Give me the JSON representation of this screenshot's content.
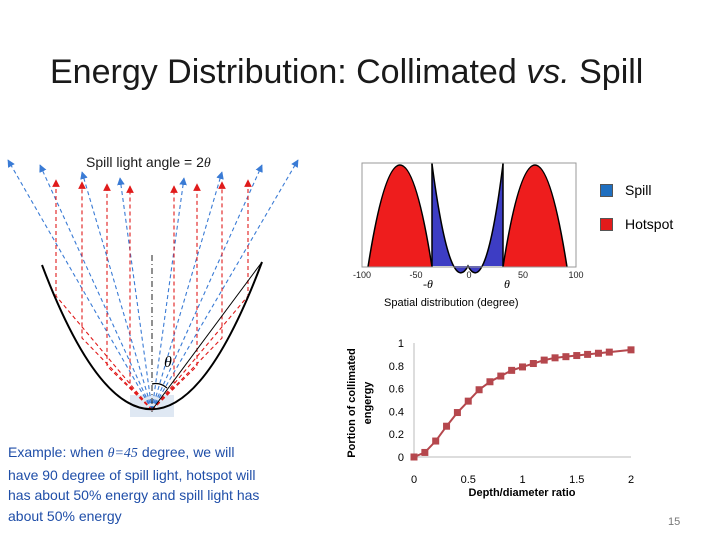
{
  "slide": {
    "title_main": "Energy Distribution: Collimated ",
    "title_vs": "vs.",
    "title_tail": " Spill",
    "page_number": "15"
  },
  "diagram": {
    "spill_label_prefix": "Spill light angle = 2",
    "theta_symbol": "θ",
    "spill_color": "#3a7bd5",
    "hotspot_color": "#e01b1b"
  },
  "spatial": {
    "ticks": [
      "-100",
      "-50",
      "0",
      "50",
      "100"
    ],
    "neg_theta": "-θ",
    "pos_theta": "θ",
    "caption": "Spatial distribution (degree)",
    "spill_fill": "#3d3dc4",
    "hotspot_fill": "#ee1d1d"
  },
  "legend": {
    "items": [
      {
        "label": "Spill",
        "color": "#1f6fc0"
      },
      {
        "label": "Hotspot",
        "color": "#e21b1b"
      }
    ]
  },
  "example": {
    "line1_pre": "Example: when ",
    "line1_eq": "θ=45",
    "line1_post": " degree, we will",
    "line2": "have 90 degree of spill light, hotspot will",
    "line3": "has about 50% energy and spill light has",
    "line4": "about 50% energy"
  },
  "chart_data": {
    "type": "line",
    "title": "",
    "xlabel": "Depth/diameter ratio",
    "ylabel": "Portion of collimated engergy",
    "xlim": [
      0,
      2
    ],
    "ylim": [
      0,
      1
    ],
    "x_ticks": [
      "0",
      "0.5",
      "1",
      "1.5",
      "2"
    ],
    "y_ticks": [
      "0",
      "0.2",
      "0.4",
      "0.6",
      "0.8",
      "1"
    ],
    "series": [
      {
        "name": "collimated",
        "color": "#b5474d",
        "x": [
          0,
          0.1,
          0.2,
          0.3,
          0.4,
          0.5,
          0.6,
          0.7,
          0.8,
          0.9,
          1.0,
          1.1,
          1.2,
          1.3,
          1.4,
          1.5,
          1.6,
          1.7,
          1.8,
          2.0
        ],
        "y": [
          0,
          0.04,
          0.14,
          0.27,
          0.39,
          0.49,
          0.59,
          0.66,
          0.71,
          0.76,
          0.79,
          0.82,
          0.85,
          0.87,
          0.88,
          0.89,
          0.9,
          0.91,
          0.92,
          0.94
        ]
      }
    ]
  }
}
